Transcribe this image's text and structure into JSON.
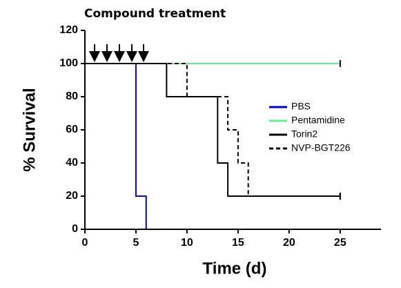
{
  "chart_data": {
    "type": "step",
    "annotation": "Compound treatment",
    "x_label": "Time (d)",
    "y_label": "% Survival",
    "xlim": [
      0,
      29
    ],
    "xticks": [
      0,
      5,
      10,
      15,
      20,
      25
    ],
    "ylim": [
      0,
      120
    ],
    "yticks": [
      0,
      20,
      40,
      60,
      80,
      100,
      120
    ],
    "legend": "right",
    "series": [
      {
        "name": "PBS",
        "color": "#0000cc",
        "dash": false,
        "x": [
          0,
          5,
          6
        ],
        "values": [
          100,
          20,
          0
        ]
      },
      {
        "name": "Pentamidine",
        "color": "#5ef08a",
        "dash": false,
        "x": [
          0,
          25
        ],
        "values": [
          100,
          100
        ]
      },
      {
        "name": "Torin2",
        "color": "#000000",
        "dash": false,
        "x": [
          0,
          8,
          13,
          14,
          25
        ],
        "values": [
          100,
          80,
          40,
          20,
          20
        ]
      },
      {
        "name": "NVP-BGT226",
        "color": "#000000",
        "dash": true,
        "x": [
          0,
          10,
          14,
          15,
          16,
          25
        ],
        "values": [
          100,
          80,
          60,
          40,
          20,
          20
        ]
      }
    ]
  }
}
